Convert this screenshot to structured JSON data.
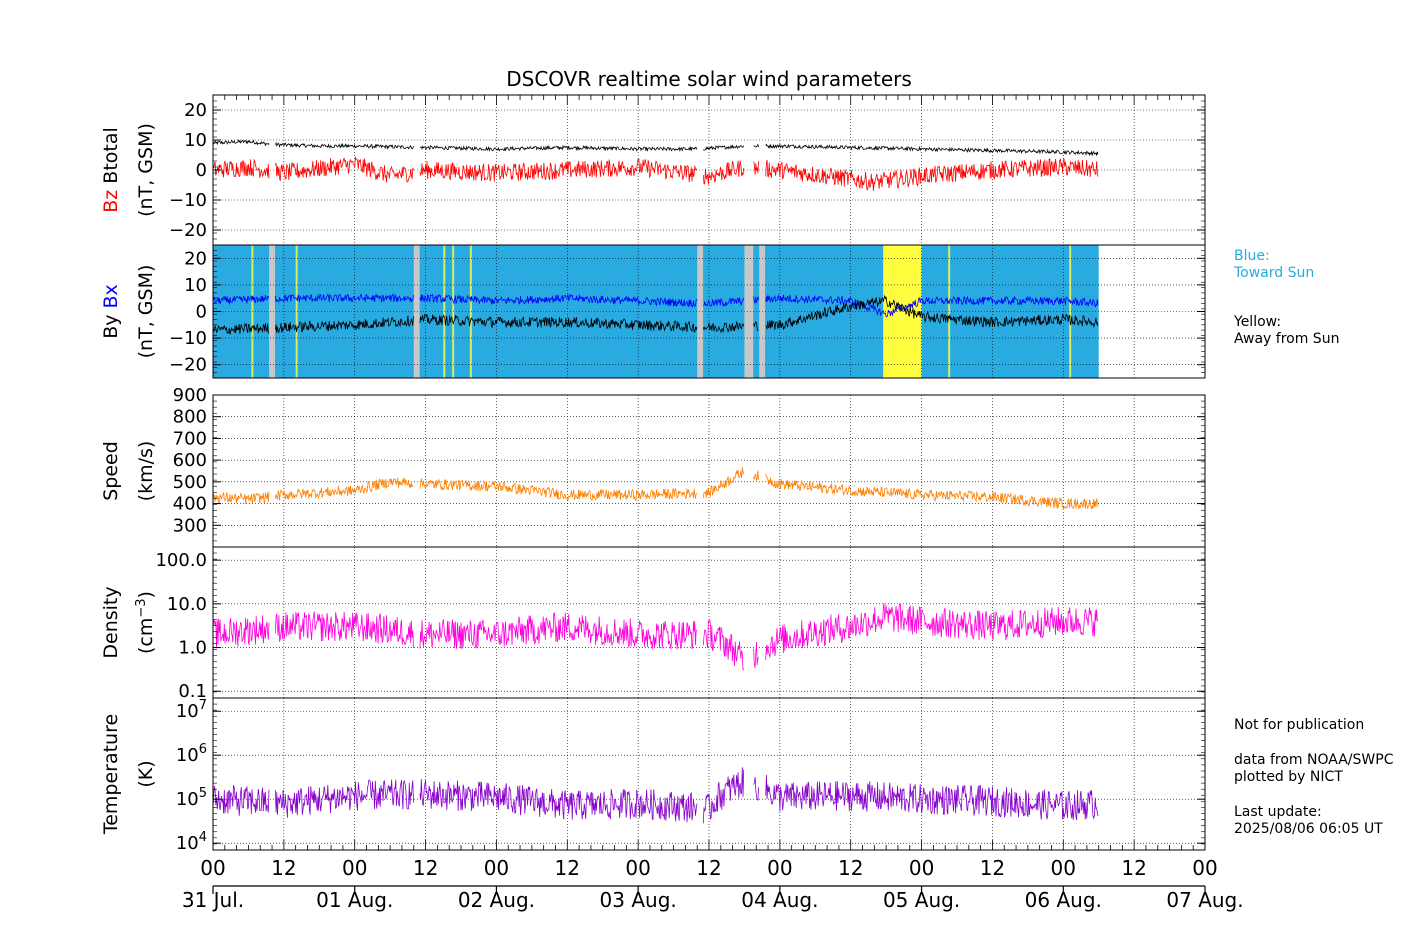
{
  "title": "DSCOVR realtime solar wind parameters",
  "colors": {
    "bz": "#ff0000",
    "btotal": "#000000",
    "bx": "#0000ff",
    "by": "#000000",
    "speed": "#ff8000",
    "density": "#ff00dd",
    "temperature": "#8800cc",
    "toward": "#29abe2",
    "away": "#ffff40",
    "gap": "#c8c8c8"
  },
  "panels": [
    {
      "id": "mag",
      "ylabel_a": "Bz",
      "ylabel_b": "Btotal",
      "ylabel_unit": "(nT, GSM)",
      "ticks": [
        "20",
        "10",
        "0",
        "−10",
        "−20"
      ]
    },
    {
      "id": "bxby",
      "ylabel_a": "By",
      "ylabel_b": "Bx",
      "ylabel_unit": "(nT, GSM)",
      "ticks": [
        "20",
        "10",
        "0",
        "−10",
        "−20"
      ]
    },
    {
      "id": "speed",
      "ylabel": "Speed",
      "ylabel_unit": "(km/s)",
      "ticks": [
        "900",
        "800",
        "700",
        "600",
        "500",
        "400",
        "300"
      ]
    },
    {
      "id": "density",
      "ylabel": "Density",
      "ylabel_unit": "(cm",
      "ylabel_sup": "−3",
      "ylabel_unit_end": ")",
      "ticks": [
        "100.0",
        "10.0",
        "1.0",
        "0.1"
      ]
    },
    {
      "id": "temp",
      "ylabel": "Temperature",
      "ylabel_unit": "(K)",
      "ticks": [
        "10",
        "10",
        "10",
        "10"
      ],
      "tick_exps": [
        "7",
        "6",
        "5",
        "4"
      ]
    }
  ],
  "x_hour_ticks": [
    "00",
    "12",
    "00",
    "12",
    "00",
    "12",
    "00",
    "12",
    "00",
    "12",
    "00",
    "12",
    "00",
    "12",
    "00"
  ],
  "x_day_ticks": [
    "31 Jul.",
    "01 Aug.",
    "02 Aug.",
    "03 Aug.",
    "04 Aug.",
    "05 Aug.",
    "06 Aug.",
    "07 Aug."
  ],
  "legend": {
    "blue_label": "Blue:",
    "blue_text": "Toward Sun",
    "yellow_label": "Yellow:",
    "yellow_text": "Away from Sun"
  },
  "notes": {
    "publication": "Not for publication",
    "source1": "data from NOAA/SWPC",
    "source2": "plotted by NICT",
    "update_label": "Last update:",
    "update_value": "2025/08/06 06:05 UT"
  },
  "chart_data": {
    "type": "line",
    "time_range_hours": [
      0,
      168
    ],
    "data_end_hour": 150,
    "series": [
      {
        "name": "Btotal",
        "panel": "mag",
        "unit": "nT",
        "points": [
          [
            0,
            9
          ],
          [
            6,
            9.5
          ],
          [
            10,
            8.5
          ],
          [
            18,
            8
          ],
          [
            24,
            8
          ],
          [
            36,
            7.5
          ],
          [
            48,
            7
          ],
          [
            60,
            7.5
          ],
          [
            72,
            7
          ],
          [
            82,
            7
          ],
          [
            90,
            8
          ],
          [
            96,
            8
          ],
          [
            108,
            7.5
          ],
          [
            120,
            7
          ],
          [
            132,
            6.5
          ],
          [
            144,
            6
          ],
          [
            150,
            5.5
          ]
        ]
      },
      {
        "name": "Bz",
        "panel": "mag",
        "unit": "nT",
        "points": [
          [
            0,
            0
          ],
          [
            6,
            1
          ],
          [
            12,
            -1
          ],
          [
            24,
            2
          ],
          [
            30,
            -2
          ],
          [
            36,
            0
          ],
          [
            48,
            -1
          ],
          [
            60,
            0
          ],
          [
            72,
            1
          ],
          [
            84,
            -2
          ],
          [
            90,
            1
          ],
          [
            96,
            0
          ],
          [
            108,
            -3
          ],
          [
            112,
            -4
          ],
          [
            120,
            -2
          ],
          [
            132,
            0
          ],
          [
            144,
            1
          ],
          [
            150,
            0
          ]
        ]
      },
      {
        "name": "Bx",
        "panel": "bxby",
        "unit": "nT",
        "points": [
          [
            0,
            4
          ],
          [
            12,
            5
          ],
          [
            24,
            5
          ],
          [
            36,
            5
          ],
          [
            48,
            4
          ],
          [
            60,
            5
          ],
          [
            72,
            4
          ],
          [
            84,
            3
          ],
          [
            96,
            5
          ],
          [
            108,
            4
          ],
          [
            114,
            -1
          ],
          [
            120,
            4
          ],
          [
            132,
            4
          ],
          [
            144,
            4
          ],
          [
            150,
            3
          ]
        ]
      },
      {
        "name": "By",
        "panel": "bxby",
        "unit": "nT",
        "points": [
          [
            0,
            -7
          ],
          [
            12,
            -6
          ],
          [
            24,
            -5
          ],
          [
            36,
            -3
          ],
          [
            48,
            -4
          ],
          [
            60,
            -4
          ],
          [
            72,
            -5
          ],
          [
            84,
            -6
          ],
          [
            96,
            -5
          ],
          [
            108,
            2
          ],
          [
            114,
            4
          ],
          [
            120,
            -2
          ],
          [
            132,
            -4
          ],
          [
            144,
            -3
          ],
          [
            150,
            -4
          ]
        ]
      },
      {
        "name": "Speed",
        "panel": "speed",
        "unit": "km/s",
        "points": [
          [
            0,
            430
          ],
          [
            6,
            420
          ],
          [
            12,
            440
          ],
          [
            24,
            460
          ],
          [
            30,
            500
          ],
          [
            36,
            490
          ],
          [
            48,
            480
          ],
          [
            60,
            440
          ],
          [
            72,
            440
          ],
          [
            84,
            450
          ],
          [
            90,
            550
          ],
          [
            96,
            490
          ],
          [
            108,
            460
          ],
          [
            120,
            440
          ],
          [
            132,
            430
          ],
          [
            144,
            400
          ],
          [
            150,
            400
          ]
        ]
      },
      {
        "name": "Density",
        "panel": "density",
        "unit": "cm^-3",
        "points": [
          [
            0,
            2
          ],
          [
            12,
            3
          ],
          [
            24,
            3
          ],
          [
            36,
            2
          ],
          [
            48,
            2
          ],
          [
            60,
            3
          ],
          [
            72,
            2
          ],
          [
            84,
            2
          ],
          [
            90,
            0.4
          ],
          [
            96,
            1.5
          ],
          [
            108,
            3
          ],
          [
            114,
            5
          ],
          [
            120,
            4
          ],
          [
            132,
            3
          ],
          [
            144,
            4
          ],
          [
            150,
            4
          ]
        ]
      },
      {
        "name": "Temperature",
        "panel": "temp",
        "unit": "K",
        "points": [
          [
            0,
            100000
          ],
          [
            12,
            80000
          ],
          [
            24,
            120000
          ],
          [
            36,
            130000
          ],
          [
            48,
            110000
          ],
          [
            60,
            70000
          ],
          [
            72,
            80000
          ],
          [
            84,
            60000
          ],
          [
            90,
            250000
          ],
          [
            96,
            110000
          ],
          [
            108,
            120000
          ],
          [
            120,
            100000
          ],
          [
            132,
            90000
          ],
          [
            144,
            70000
          ],
          [
            150,
            80000
          ]
        ]
      }
    ],
    "imf_sectors": [
      {
        "start": 0,
        "end": 150,
        "type": "toward"
      },
      {
        "start": 113.5,
        "end": 120,
        "type": "away"
      }
    ],
    "data_gaps": [
      [
        9.5,
        10.5
      ],
      [
        34,
        35
      ],
      [
        82,
        83
      ],
      [
        90,
        91.5
      ],
      [
        92.5,
        93.5
      ]
    ],
    "ylim": {
      "mag": [
        -25,
        25
      ],
      "bxby": [
        -25,
        25
      ],
      "speed": [
        200,
        900
      ],
      "density": [
        0.07,
        200
      ],
      "temp": [
        7000,
        20000000
      ]
    },
    "yscale": {
      "density": "log",
      "temp": "log"
    },
    "grid": true
  }
}
